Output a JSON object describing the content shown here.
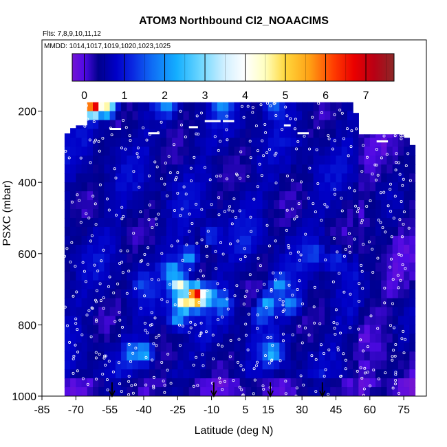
{
  "chart_data": {
    "type": "heatmap",
    "title": "ATOM3 Northbound Cl2_NOAACIMS",
    "flights_label": "Flts: 7,8,9,10,11,12",
    "mmdd_label": "MMDD: 1014,1017,1019,1020,1023,1025",
    "xlabel": "Latitude (deg N)",
    "ylabel": "PSXC (mbar)",
    "xlim": [
      -85,
      85
    ],
    "ylim": [
      1000,
      0
    ],
    "x_ticks": [
      -85,
      -70,
      -55,
      -40,
      -25,
      -10,
      5,
      15,
      30,
      45,
      60,
      75
    ],
    "y_ticks": [
      200,
      400,
      600,
      800,
      1000
    ],
    "colorbar": {
      "min": -0.3,
      "max": 7.7,
      "ticks": [
        0,
        1,
        2,
        3,
        4,
        5,
        6,
        7
      ]
    },
    "colors": {
      "background_field": "#1a1acc",
      "white_points": "#ffffff"
    },
    "data_coverage": {
      "lat_range": [
        -75,
        78
      ],
      "pressure_top": 175,
      "pressure_bottom": 1000
    },
    "hotspots": [
      {
        "lat": -17,
        "pressure": 720,
        "value": 7.2
      },
      {
        "lat": -22,
        "pressure": 735,
        "value": 5.0
      },
      {
        "lat": -24,
        "pressure": 690,
        "value": 4.4
      },
      {
        "lat": -62,
        "pressure": 185,
        "value": 7.0
      },
      {
        "lat": -57,
        "pressure": 185,
        "value": 4.8
      },
      {
        "lat": -12,
        "pressure": 720,
        "value": 3.2
      },
      {
        "lat": -27,
        "pressure": 650,
        "value": 2.6
      },
      {
        "lat": -20,
        "pressure": 610,
        "value": 2.2
      },
      {
        "lat": -5,
        "pressure": 740,
        "value": 2.0
      },
      {
        "lat": -40,
        "pressure": 880,
        "value": 2.4
      },
      {
        "lat": -45,
        "pressure": 880,
        "value": 2.0
      },
      {
        "lat": -25,
        "pressure": 780,
        "value": 2.2
      },
      {
        "lat": 17,
        "pressure": 880,
        "value": 2.4
      },
      {
        "lat": 15,
        "pressure": 740,
        "value": 2.4
      },
      {
        "lat": 20,
        "pressure": 690,
        "value": 2.2
      },
      {
        "lat": 25,
        "pressure": 740,
        "value": 2.0
      },
      {
        "lat": 12,
        "pressure": 770,
        "value": 1.8
      },
      {
        "lat": -10,
        "pressure": 550,
        "value": 1.4
      },
      {
        "lat": 5,
        "pressure": 560,
        "value": 1.2
      },
      {
        "lat": -40,
        "pressure": 690,
        "value": 1.4
      },
      {
        "lat": -30,
        "pressure": 185,
        "value": 2.0
      },
      {
        "lat": -5,
        "pressure": 185,
        "value": 2.1
      },
      {
        "lat": 18,
        "pressure": 185,
        "value": 1.7
      },
      {
        "lat": 60,
        "pressure": 880,
        "value": 0.2
      },
      {
        "lat": 68,
        "pressure": 380,
        "value": 0.0
      },
      {
        "lat": -60,
        "pressure": 920,
        "value": 0.2
      },
      {
        "lat": 35,
        "pressure": 600,
        "value": 1.5
      },
      {
        "lat": 45,
        "pressure": 620,
        "value": 1.3
      }
    ],
    "arrows_lat": [
      -54,
      -9,
      16,
      39
    ]
  }
}
